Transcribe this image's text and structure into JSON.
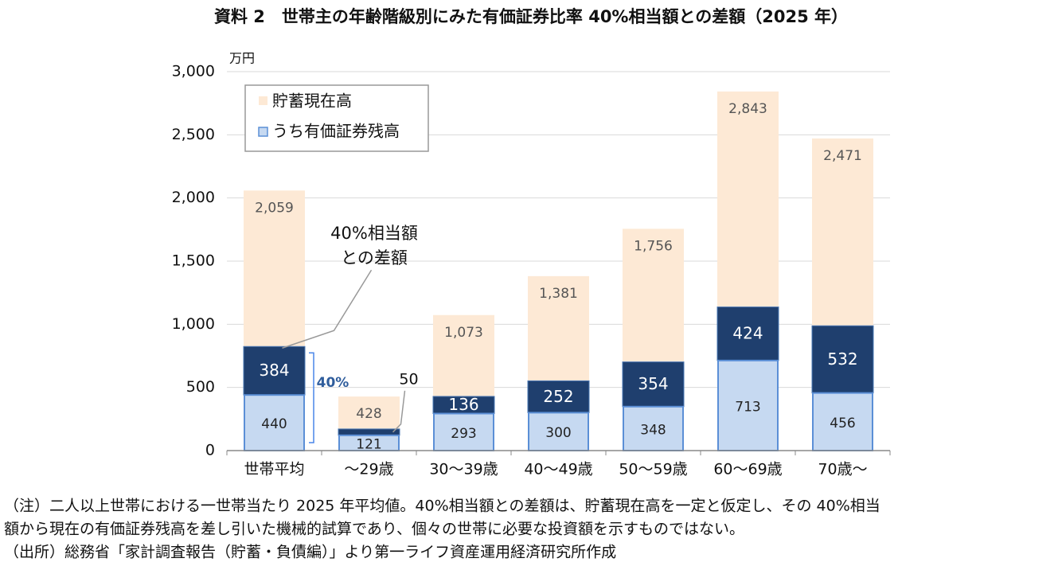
{
  "chart_data": {
    "type": "overlay-bar",
    "title": "資料 2　世帯主の年齢階級別にみた有価証券比率 40%相当額との差額（2025 年）",
    "y_unit": "万円",
    "categories": [
      "世帯平均",
      "～29歳",
      "30～39歳",
      "40～49歳",
      "50～59歳",
      "60～69歳",
      "70歳～"
    ],
    "series": [
      {
        "name": "貯蓄現在高",
        "color": "#fde9d5",
        "values": [
          2059,
          428,
          1073,
          1381,
          1756,
          2843,
          2471
        ],
        "value_labels": [
          "2,059",
          "428",
          "1,073",
          "1,381",
          "1,756",
          "2,843",
          "2,471"
        ]
      },
      {
        "name": "うち有価証券残高",
        "color": "#c6d9f1",
        "values": [
          440,
          121,
          293,
          300,
          348,
          713,
          456
        ]
      }
    ],
    "difference": {
      "label_lines": [
        "40%相当額",
        "との差額"
      ],
      "color": "#1f3f6e",
      "values": [
        384,
        50,
        136,
        252,
        354,
        424,
        532
      ]
    },
    "bracket_label": "40%",
    "ylim": [
      0,
      3000
    ],
    "yticks": [
      0,
      500,
      {
        "value": 1000,
        "label": "1,000"
      },
      {
        "value": 1500,
        "label": "1,500"
      },
      {
        "value": 2000,
        "label": "2,000"
      },
      {
        "value": 2500,
        "label": "2,500"
      },
      {
        "value": 3000,
        "label": "3,000"
      }
    ],
    "grid": true,
    "notes": [
      "（注）二人以上世帯における一世帯当たり 2025 年平均値。40%相当額との差額は、貯蓄現在高を一定と仮定し、その 40%相当",
      "額から現在の有価証券残高を差し引いた機械的試算であり、個々の世帯に必要な投資額を示すものではない。",
      "（出所）総務省「家計調査報告（貯蓄・負債編）」より第一ライフ資産運用経済研究所作成"
    ]
  }
}
